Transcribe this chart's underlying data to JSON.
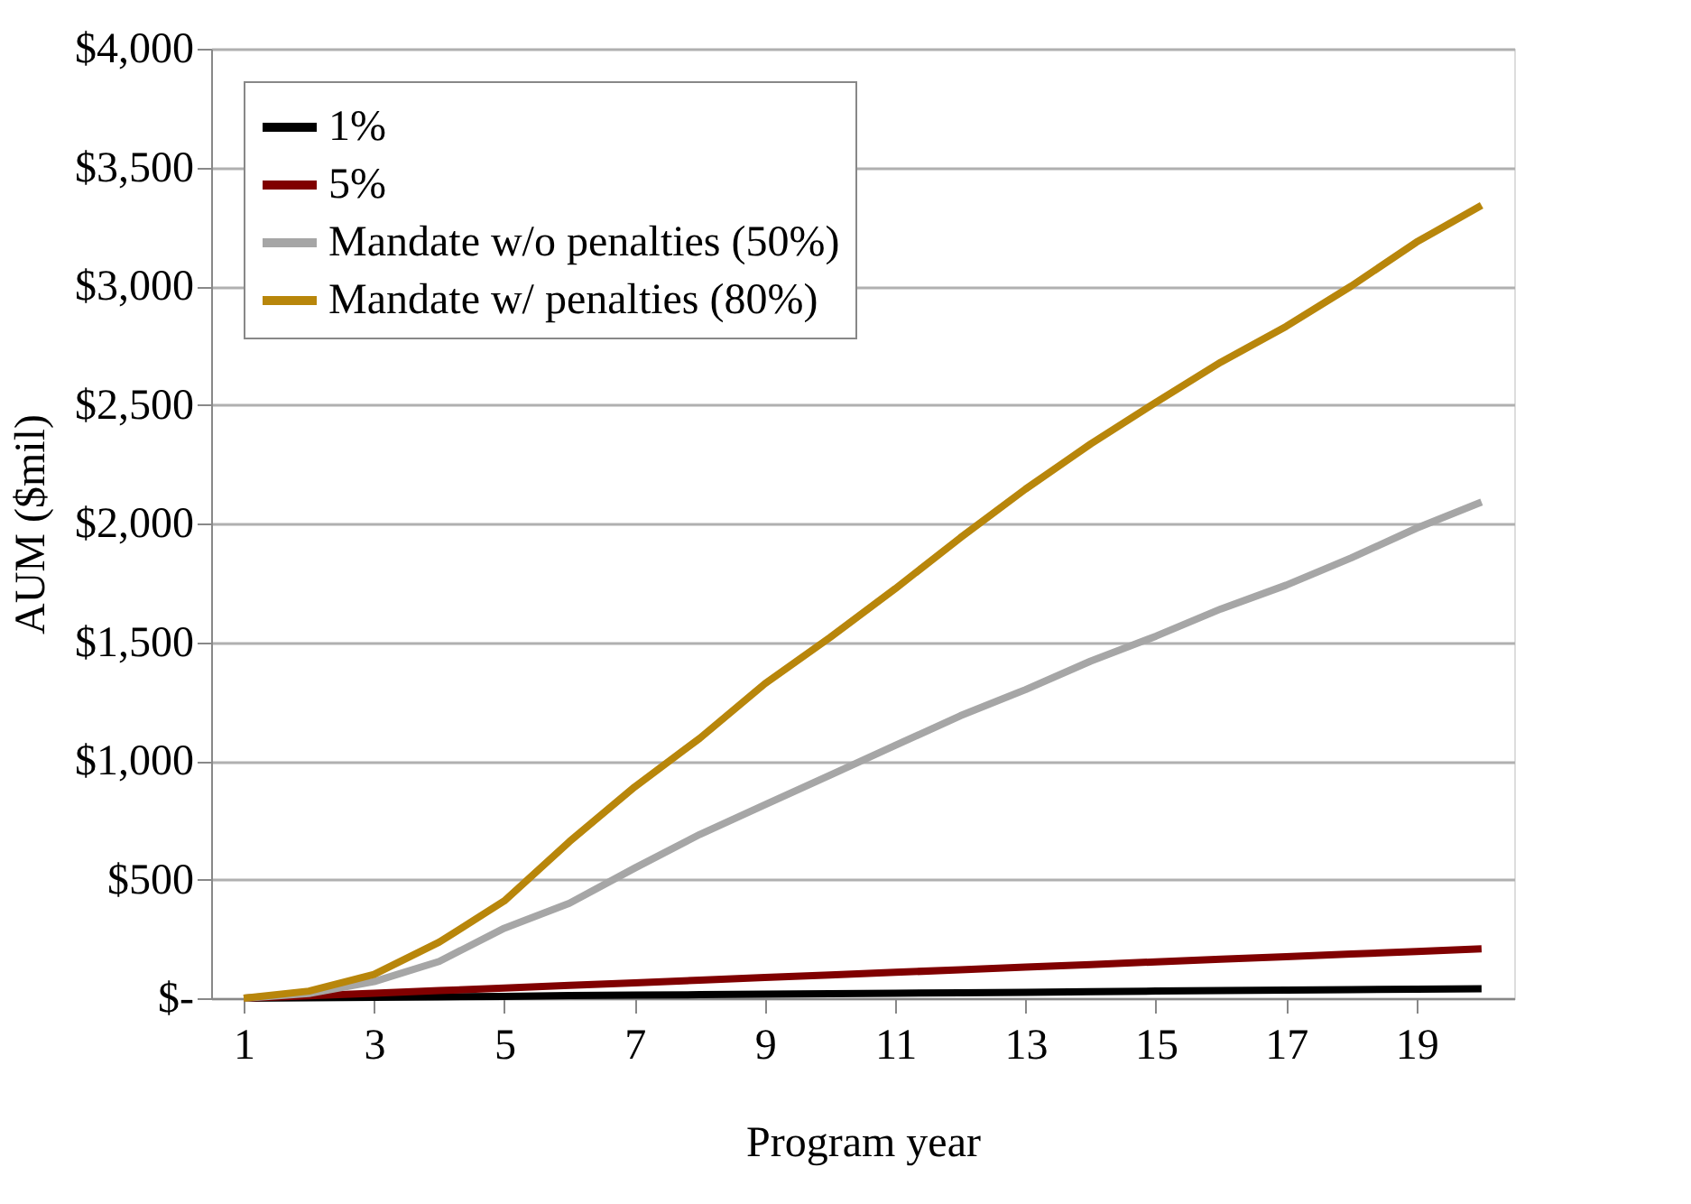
{
  "chart_data": {
    "type": "line",
    "xlabel": "Program year",
    "ylabel": "AUM ($mil)",
    "x": [
      1,
      2,
      3,
      4,
      5,
      6,
      7,
      8,
      9,
      10,
      11,
      12,
      13,
      14,
      15,
      16,
      17,
      18,
      19,
      20
    ],
    "series": [
      {
        "name": "1%",
        "color": "#000000",
        "values": [
          0,
          2,
          4,
          6,
          8,
          11,
          13,
          15,
          17,
          19,
          21,
          23,
          25,
          28,
          30,
          32,
          34,
          36,
          38,
          40
        ]
      },
      {
        "name": "5%",
        "color": "#800000",
        "values": [
          0,
          10,
          21,
          32,
          43,
          54,
          65,
          76,
          87,
          98,
          109,
          120,
          131,
          142,
          153,
          164,
          175,
          186,
          197,
          208
        ]
      },
      {
        "name": "Mandate w/o penalties (50%)",
        "color": "#a6a6a6",
        "values": [
          0,
          20,
          70,
          155,
          295,
          400,
          548,
          690,
          815,
          940,
          1065,
          1190,
          1300,
          1420,
          1525,
          1640,
          1740,
          1855,
          1980,
          2090
        ]
      },
      {
        "name": "Mandate w/ penalties (80%)",
        "color": "#b8860b",
        "values": [
          0,
          30,
          100,
          236,
          410,
          660,
          890,
          1095,
          1325,
          1520,
          1725,
          1940,
          2145,
          2335,
          2510,
          2680,
          2830,
          3000,
          3185,
          3340
        ]
      }
    ],
    "xlim": [
      0.5,
      20.5
    ],
    "xticks": [
      1,
      3,
      5,
      7,
      9,
      11,
      13,
      15,
      17,
      19
    ],
    "ylim": [
      0,
      4000
    ],
    "yticks": [
      {
        "value": 0,
        "label": "$-"
      },
      {
        "value": 500,
        "label": "$500"
      },
      {
        "value": 1000,
        "label": "$1,000"
      },
      {
        "value": 1500,
        "label": "$1,500"
      },
      {
        "value": 2000,
        "label": "$2,000"
      },
      {
        "value": 2500,
        "label": "$2,500"
      },
      {
        "value": 3000,
        "label": "$3,000"
      },
      {
        "value": 3500,
        "label": "$3,500"
      },
      {
        "value": 4000,
        "label": "$4,000"
      }
    ],
    "grid": "y",
    "legend": "top left",
    "marker": "none",
    "line_style": "solid"
  }
}
